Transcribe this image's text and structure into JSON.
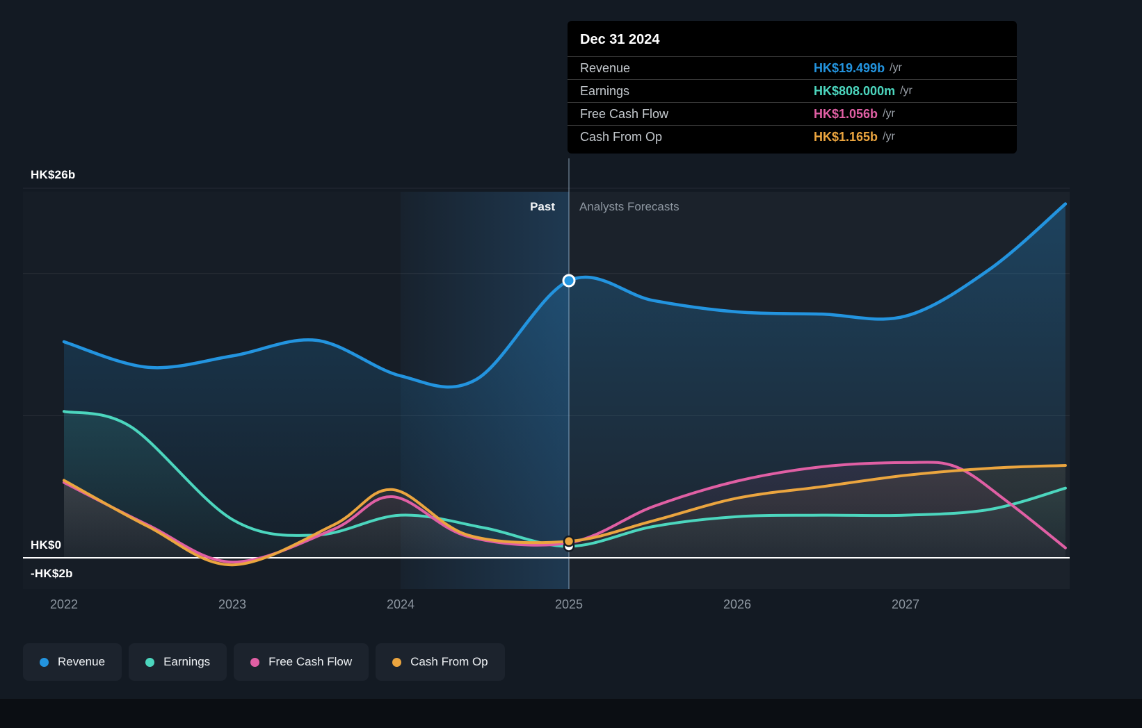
{
  "tooltip": {
    "title": "Dec 31 2024",
    "rows": [
      {
        "label": "Revenue",
        "value": "HK$19.499b",
        "suffix": "/yr",
        "color": "#2394df"
      },
      {
        "label": "Earnings",
        "value": "HK$808.000m",
        "suffix": "/yr",
        "color": "#4cd6be"
      },
      {
        "label": "Free Cash Flow",
        "value": "HK$1.056b",
        "suffix": "/yr",
        "color": "#e05fa4"
      },
      {
        "label": "Cash From Op",
        "value": "HK$1.165b",
        "suffix": "/yr",
        "color": "#eba53f"
      }
    ]
  },
  "axis": {
    "y_labels": [
      {
        "text": "HK$26b",
        "value": 26
      },
      {
        "text": "HK$0",
        "value": 0
      },
      {
        "text": "-HK$2b",
        "value": -2
      }
    ],
    "x_ticks": [
      "2022",
      "2023",
      "2024",
      "2025",
      "2026",
      "2027"
    ]
  },
  "annotations": {
    "past": "Past",
    "forecast": "Analysts Forecasts"
  },
  "legend": [
    {
      "label": "Revenue",
      "color": "#2394df"
    },
    {
      "label": "Earnings",
      "color": "#4cd6be"
    },
    {
      "label": "Free Cash Flow",
      "color": "#e05fa4"
    },
    {
      "label": "Cash From Op",
      "color": "#eba53f"
    }
  ],
  "chart_data": {
    "type": "line",
    "x_unit": "year",
    "y_unit": "HK$ billions",
    "x_domain": [
      2022,
      2027.95
    ],
    "ylim": [
      -2,
      26
    ],
    "gridline_values": [
      26,
      20,
      10
    ],
    "zero_line_value": 0,
    "divider_x": 2025,
    "highlight_band": [
      2024,
      2025
    ],
    "series": [
      {
        "name": "Revenue",
        "color": "#2394df",
        "x": [
          2022,
          2022.5,
          2023,
          2023.5,
          2024,
          2024.45,
          2025,
          2025.5,
          2026,
          2026.5,
          2027,
          2027.5,
          2027.95
        ],
        "values": [
          15.2,
          13.4,
          14.2,
          15.3,
          12.8,
          12.55,
          19.499,
          18.1,
          17.3,
          17.15,
          17.0,
          20.3,
          24.9
        ]
      },
      {
        "name": "Earnings",
        "color": "#4cd6be",
        "x": [
          2022,
          2022.4,
          2023,
          2023.5,
          2024,
          2024.5,
          2025,
          2025.5,
          2026,
          2026.5,
          2027,
          2027.5,
          2027.95
        ],
        "values": [
          10.3,
          9.2,
          2.7,
          1.6,
          3.0,
          2.1,
          0.808,
          2.2,
          2.9,
          3.0,
          3.0,
          3.4,
          4.9
        ]
      },
      {
        "name": "Free Cash Flow",
        "color": "#e05fa4",
        "x": [
          2022,
          2022.5,
          2023,
          2023.6,
          2023.95,
          2024.4,
          2025,
          2025.5,
          2026,
          2026.5,
          2027,
          2027.3,
          2027.6,
          2027.95
        ],
        "values": [
          5.3,
          2.3,
          -0.3,
          2.0,
          4.3,
          1.5,
          1.056,
          3.6,
          5.4,
          6.4,
          6.7,
          6.4,
          4.0,
          0.7
        ]
      },
      {
        "name": "Cash From Op",
        "color": "#eba53f",
        "x": [
          2022,
          2022.5,
          2023,
          2023.6,
          2023.95,
          2024.4,
          2025,
          2025.5,
          2026,
          2026.5,
          2027,
          2027.5,
          2027.95
        ],
        "values": [
          5.45,
          2.2,
          -0.5,
          2.3,
          4.8,
          1.6,
          1.165,
          2.6,
          4.2,
          5.0,
          5.8,
          6.3,
          6.5
        ]
      }
    ],
    "markers": [
      {
        "name": "Earnings",
        "x": 2025,
        "value": 0.808,
        "fill": "#ffffff",
        "stroke": "#131a23"
      },
      {
        "name": "Cash From Op",
        "x": 2025,
        "value": 1.165,
        "fill": "#eba53f",
        "stroke": "#131a23"
      },
      {
        "name": "Revenue",
        "x": 2025,
        "value": 19.499,
        "fill": "#2394df",
        "stroke": "#ffffff"
      }
    ]
  }
}
